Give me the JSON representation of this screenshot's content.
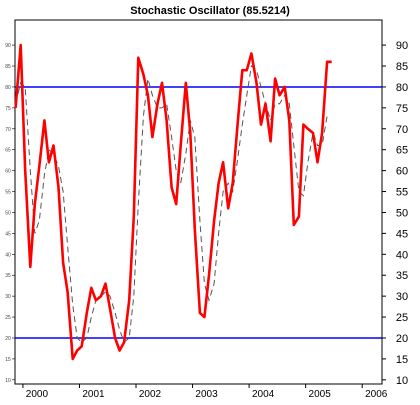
{
  "chart_data": {
    "type": "line",
    "title": "Stochastic Oscillator (85.5214)",
    "xlabel": "",
    "ylabel": "",
    "xlim": [
      1999.86,
      2006.35
    ],
    "ylim": [
      9,
      96
    ],
    "x_ticks": [
      "2000",
      "2001",
      "2002",
      "2003",
      "2004",
      "2005",
      "2006"
    ],
    "x_tick_values": [
      2000,
      2001,
      2002,
      2003,
      2004,
      2005,
      2006
    ],
    "y_ticks": [
      10,
      15,
      20,
      25,
      30,
      35,
      40,
      45,
      50,
      55,
      60,
      65,
      70,
      75,
      80,
      85,
      90
    ],
    "grid": false,
    "reference_lines": [
      80,
      20
    ],
    "colors": {
      "main": "#ff0000",
      "signal": "#555555",
      "reference": "#0000ff"
    },
    "series": [
      {
        "x": [
          1999.87,
          1999.96,
          2000.04,
          2000.13,
          2000.21,
          2000.29,
          2000.38,
          2000.46,
          2000.54,
          2000.63,
          2000.71,
          2000.79,
          2000.88,
          2000.96,
          2001.04,
          2001.13,
          2001.21,
          2001.29,
          2001.38,
          2001.46,
          2001.54,
          2001.63,
          2001.71,
          2001.79,
          2001.88,
          2001.96,
          2002.04,
          2002.13,
          2002.21,
          2002.29,
          2002.38,
          2002.46,
          2002.54,
          2002.63,
          2002.71,
          2002.79,
          2002.88,
          2002.96,
          2003.04,
          2003.13,
          2003.21,
          2003.29,
          2003.38,
          2003.46,
          2003.54,
          2003.63,
          2003.71,
          2003.79,
          2003.88,
          2003.96,
          2004.04,
          2004.13,
          2004.21,
          2004.29,
          2004.38,
          2004.46,
          2004.54,
          2004.63,
          2004.71,
          2004.79,
          2004.88,
          2004.96,
          2005.04,
          2005.13,
          2005.21,
          2005.29,
          2005.38,
          2005.46
        ],
        "values": [
          75,
          90,
          60,
          37,
          52,
          61,
          72,
          62,
          66,
          56,
          38,
          31,
          15,
          17,
          18,
          26,
          32,
          29,
          30,
          33,
          27,
          20,
          17,
          19,
          29,
          49,
          87,
          83,
          78,
          68,
          76,
          81,
          72,
          56,
          52,
          66,
          81,
          69,
          46,
          26,
          25,
          35,
          48,
          57,
          62,
          51,
          57,
          70,
          84,
          84,
          88,
          81,
          71,
          76,
          67,
          82,
          78,
          80,
          72,
          47,
          49,
          71,
          70,
          69,
          62,
          69,
          86,
          86
        ]
      },
      {
        "x": [
          1999.87,
          1999.96,
          2000.04,
          2000.13,
          2000.21,
          2000.29,
          2000.38,
          2000.46,
          2000.54,
          2000.63,
          2000.71,
          2000.79,
          2000.88,
          2000.96,
          2001.04,
          2001.13,
          2001.21,
          2001.29,
          2001.38,
          2001.46,
          2001.54,
          2001.63,
          2001.71,
          2001.79,
          2001.88,
          2001.96,
          2002.04,
          2002.13,
          2002.21,
          2002.29,
          2002.38,
          2002.46,
          2002.54,
          2002.63,
          2002.71,
          2002.79,
          2002.88,
          2002.96,
          2003.04,
          2003.13,
          2003.21,
          2003.29,
          2003.38,
          2003.46,
          2003.54,
          2003.63,
          2003.71,
          2003.79,
          2003.88,
          2003.96,
          2004.04,
          2004.13,
          2004.21,
          2004.29,
          2004.38,
          2004.46,
          2004.54,
          2004.63,
          2004.71,
          2004.79,
          2004.88,
          2004.96,
          2005.04,
          2005.13,
          2005.21,
          2005.29,
          2005.38
        ],
        "values": [
          76,
          81,
          80,
          60,
          45,
          48,
          59,
          65,
          64,
          61,
          55,
          42,
          28,
          20,
          19,
          20,
          25,
          29,
          30,
          31,
          30,
          26,
          22,
          19,
          20,
          30,
          52,
          73,
          82,
          78,
          75,
          75,
          76,
          68,
          60,
          57,
          64,
          72,
          68,
          48,
          33,
          29,
          33,
          45,
          55,
          57,
          55,
          62,
          71,
          78,
          85,
          84,
          80,
          76,
          72,
          76,
          76,
          78,
          76,
          66,
          55,
          54,
          62,
          69,
          66,
          66,
          73
        ]
      }
    ]
  }
}
